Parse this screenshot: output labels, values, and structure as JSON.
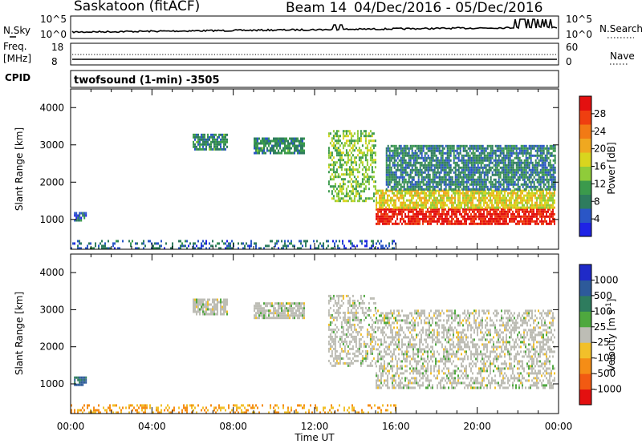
{
  "header": {
    "radar": "Saskatoon (fitACF)",
    "beam": "Beam 14",
    "date_range": "04/Dec/2016 - 05/Dec/2016",
    "program": "twofsound (1-min) -3505"
  },
  "side_labels": {
    "nsky": "N.Sky",
    "freq": "Freq.",
    "mhz": "[MHz]",
    "cpid": "CPID",
    "nsearch": "N.Search",
    "nave": "Nave"
  },
  "noise_panel": {
    "left_ticks": [
      "10^5",
      "10^0"
    ],
    "right_ticks": [
      "10^5",
      "10^0"
    ]
  },
  "freq_panel": {
    "left_ticks": [
      "18",
      "8"
    ],
    "right_ticks": [
      "60",
      "0"
    ]
  },
  "time_axis": {
    "label": "Time UT",
    "ticks": [
      "00:00",
      "04:00",
      "08:00",
      "12:00",
      "16:00",
      "20:00",
      "00:00"
    ]
  },
  "range_axis": {
    "label": "Slant Range [km]",
    "ticks": [
      "1000",
      "2000",
      "3000",
      "4000"
    ]
  },
  "power_scale": {
    "label": "Power [dB]",
    "ticks": [
      "4",
      "8",
      "12",
      "16",
      "20",
      "24",
      "28"
    ],
    "colors": [
      "#1f23e6",
      "#2a56c6",
      "#2e7c5e",
      "#3b9a4c",
      "#8fcc3a",
      "#d9d51e",
      "#f0a820",
      "#f27a15",
      "#ef3f10",
      "#e31010"
    ]
  },
  "velocity_scale": {
    "label": "Velocity [m s^-1]",
    "ticks": [
      "1000",
      "500",
      "100",
      "25",
      "-25",
      "-100",
      "-500",
      "-1000"
    ],
    "colors": [
      "#1f2ac8",
      "#2d5a9a",
      "#2e7c5e",
      "#4ea83e",
      "#bdbdb5",
      "#f2c02a",
      "#f58d16",
      "#f25a12",
      "#e31010"
    ]
  },
  "chart_data": [
    {
      "type": "heatmap",
      "title": "Power",
      "xlabel": "Time UT",
      "ylabel": "Slant Range [km]",
      "xlim": [
        "00:00",
        "00:00 (next day)"
      ],
      "ylim": [
        200,
        4500
      ],
      "colorbar": {
        "label": "Power [dB]",
        "range": [
          0,
          32
        ]
      },
      "regions": [
        {
          "time_start": "00:10",
          "time_end": "00:45",
          "range_start": 1000,
          "range_end": 1200,
          "power_db": 6
        },
        {
          "time_start": "06:00",
          "time_end": "07:40",
          "range_start": 2900,
          "range_end": 3300,
          "power_db": 9
        },
        {
          "time_start": "09:00",
          "time_end": "11:30",
          "range_start": 2800,
          "range_end": 3200,
          "power_db": 9
        },
        {
          "time_start": "12:40",
          "time_end": "15:00",
          "range_start": 1500,
          "range_end": 3400,
          "power_db": 14
        },
        {
          "time_start": "15:00",
          "time_end": "23:50",
          "range_start": 900,
          "range_end": 1300,
          "power_db": 30
        },
        {
          "time_start": "15:00",
          "time_end": "23:50",
          "range_start": 1300,
          "range_end": 1800,
          "power_db": 18
        },
        {
          "time_start": "15:30",
          "time_end": "23:50",
          "range_start": 1800,
          "range_end": 3000,
          "power_db": 8
        },
        {
          "time_start": "00:00",
          "time_end": "16:00",
          "range_start": 250,
          "range_end": 450,
          "power_db": 6
        }
      ]
    },
    {
      "type": "heatmap",
      "title": "Velocity",
      "xlabel": "Time UT",
      "ylabel": "Slant Range [km]",
      "xlim": [
        "00:00",
        "00:00 (next day)"
      ],
      "ylim": [
        200,
        4500
      ],
      "colorbar": {
        "label": "Velocity [m s^-1]",
        "range": [
          -1000,
          1000
        ]
      },
      "regions": [
        {
          "time_start": "00:10",
          "time_end": "00:45",
          "range_start": 1000,
          "range_end": 1200,
          "velocity": 100
        },
        {
          "time_start": "06:00",
          "time_end": "07:40",
          "range_start": 2900,
          "range_end": 3300,
          "velocity": 0
        },
        {
          "time_start": "09:00",
          "time_end": "11:30",
          "range_start": 2800,
          "range_end": 3200,
          "velocity": 0
        },
        {
          "time_start": "12:40",
          "time_end": "15:00",
          "range_start": 1500,
          "range_end": 3400,
          "velocity": 0
        },
        {
          "time_start": "15:00",
          "time_end": "23:50",
          "range_start": 900,
          "range_end": 3000,
          "velocity": 0
        },
        {
          "time_start": "00:00",
          "time_end": "16:00",
          "range_start": 250,
          "range_end": 450,
          "velocity": -100
        }
      ]
    }
  ]
}
